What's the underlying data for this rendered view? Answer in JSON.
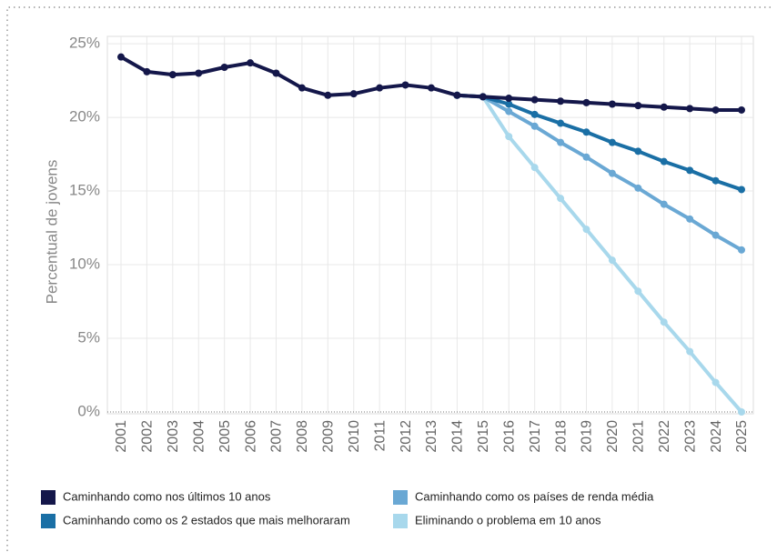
{
  "chart_data": {
    "type": "line",
    "ylabel": "Percentual de jovens",
    "categories": [
      "2001",
      "2002",
      "2003",
      "2004",
      "2005",
      "2006",
      "2007",
      "2008",
      "2009",
      "2010",
      "2011",
      "2012",
      "2013",
      "2014",
      "2015",
      "2016",
      "2017",
      "2018",
      "2019",
      "2020",
      "2021",
      "2022",
      "2023",
      "2024",
      "2025"
    ],
    "series": [
      {
        "name": "Caminhando como nos últimos 10 anos",
        "color": "#14174a",
        "values": [
          24.1,
          23.1,
          22.9,
          23.0,
          23.4,
          23.7,
          23.0,
          22.0,
          21.5,
          21.6,
          22.0,
          22.2,
          22.0,
          21.5,
          21.4,
          21.3,
          21.2,
          21.1,
          21.0,
          20.9,
          20.8,
          20.7,
          20.6,
          20.5,
          20.5
        ]
      },
      {
        "name": "Caminhando como os 2 estados que mais melhoraram",
        "color": "#1a6fa5",
        "values": [
          null,
          null,
          null,
          null,
          null,
          null,
          null,
          null,
          null,
          null,
          null,
          null,
          null,
          21.5,
          21.4,
          20.9,
          20.2,
          19.6,
          19.0,
          18.3,
          17.7,
          17.0,
          16.4,
          15.7,
          15.1
        ]
      },
      {
        "name": "Caminhando como os países de renda média",
        "color": "#6aa8d4",
        "values": [
          null,
          null,
          null,
          null,
          null,
          null,
          null,
          null,
          null,
          null,
          null,
          null,
          null,
          21.5,
          21.4,
          20.4,
          19.4,
          18.3,
          17.3,
          16.2,
          15.2,
          14.1,
          13.1,
          12.0,
          11.0
        ]
      },
      {
        "name": "Eliminando o problema em 10 anos",
        "color": "#a8d8ec",
        "values": [
          null,
          null,
          null,
          null,
          null,
          null,
          null,
          null,
          null,
          null,
          null,
          null,
          null,
          21.5,
          21.4,
          18.7,
          16.6,
          14.5,
          12.4,
          10.3,
          8.2,
          6.1,
          4.1,
          2.0,
          0
        ]
      }
    ],
    "ylim": [
      0,
      25.5
    ],
    "yticks": [
      {
        "value": 0,
        "label": "0%"
      },
      {
        "value": 5,
        "label": "5%"
      },
      {
        "value": 10,
        "label": "10%"
      },
      {
        "value": 15,
        "label": "15%"
      },
      {
        "value": 20,
        "label": "20%"
      },
      {
        "value": 25,
        "label": "25%"
      }
    ],
    "grid": true
  }
}
